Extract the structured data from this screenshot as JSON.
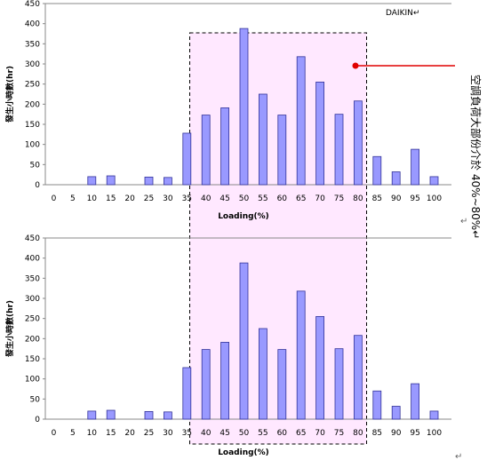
{
  "brand_label": "DAIKIN↵",
  "annotation_text": "空調負荷大部份介於 40%~80%↵",
  "paragraph_mark": "↵",
  "colors": {
    "bar_fill": "#9999ff",
    "bar_stroke": "#333399",
    "highlight_fill": "#ffe8ff",
    "marker": "#e00000"
  },
  "highlight_range": [
    40,
    80
  ],
  "chart_data": [
    {
      "type": "bar",
      "title": "",
      "xlabel": "Loading(%)",
      "ylabel": "發生小時數(hr)",
      "ylim": [
        0,
        450
      ],
      "yticks": [
        0,
        50,
        100,
        150,
        200,
        250,
        300,
        350,
        400,
        450
      ],
      "categories": [
        "0",
        "5",
        "10",
        "15",
        "20",
        "25",
        "30",
        "35",
        "40",
        "45",
        "50",
        "55",
        "60",
        "65",
        "70",
        "75",
        "80",
        "85",
        "90",
        "95",
        "100"
      ],
      "values": [
        0,
        0,
        20,
        22,
        0,
        19,
        18,
        128,
        173,
        191,
        388,
        225,
        173,
        318,
        255,
        175,
        208,
        70,
        32,
        88,
        20
      ],
      "grid": false
    },
    {
      "type": "bar",
      "title": "",
      "xlabel": "Loading(%)",
      "ylabel": "發生小時數(hr)",
      "ylim": [
        0,
        450
      ],
      "yticks": [
        0,
        50,
        100,
        150,
        200,
        250,
        300,
        350,
        400,
        450
      ],
      "categories": [
        "0",
        "5",
        "10",
        "15",
        "20",
        "25",
        "30",
        "35",
        "40",
        "45",
        "50",
        "55",
        "60",
        "65",
        "70",
        "75",
        "80",
        "85",
        "90",
        "95",
        "100"
      ],
      "values": [
        0,
        0,
        20,
        22,
        0,
        19,
        18,
        128,
        173,
        191,
        388,
        225,
        173,
        318,
        255,
        175,
        208,
        70,
        32,
        88,
        20
      ],
      "grid": false
    }
  ]
}
